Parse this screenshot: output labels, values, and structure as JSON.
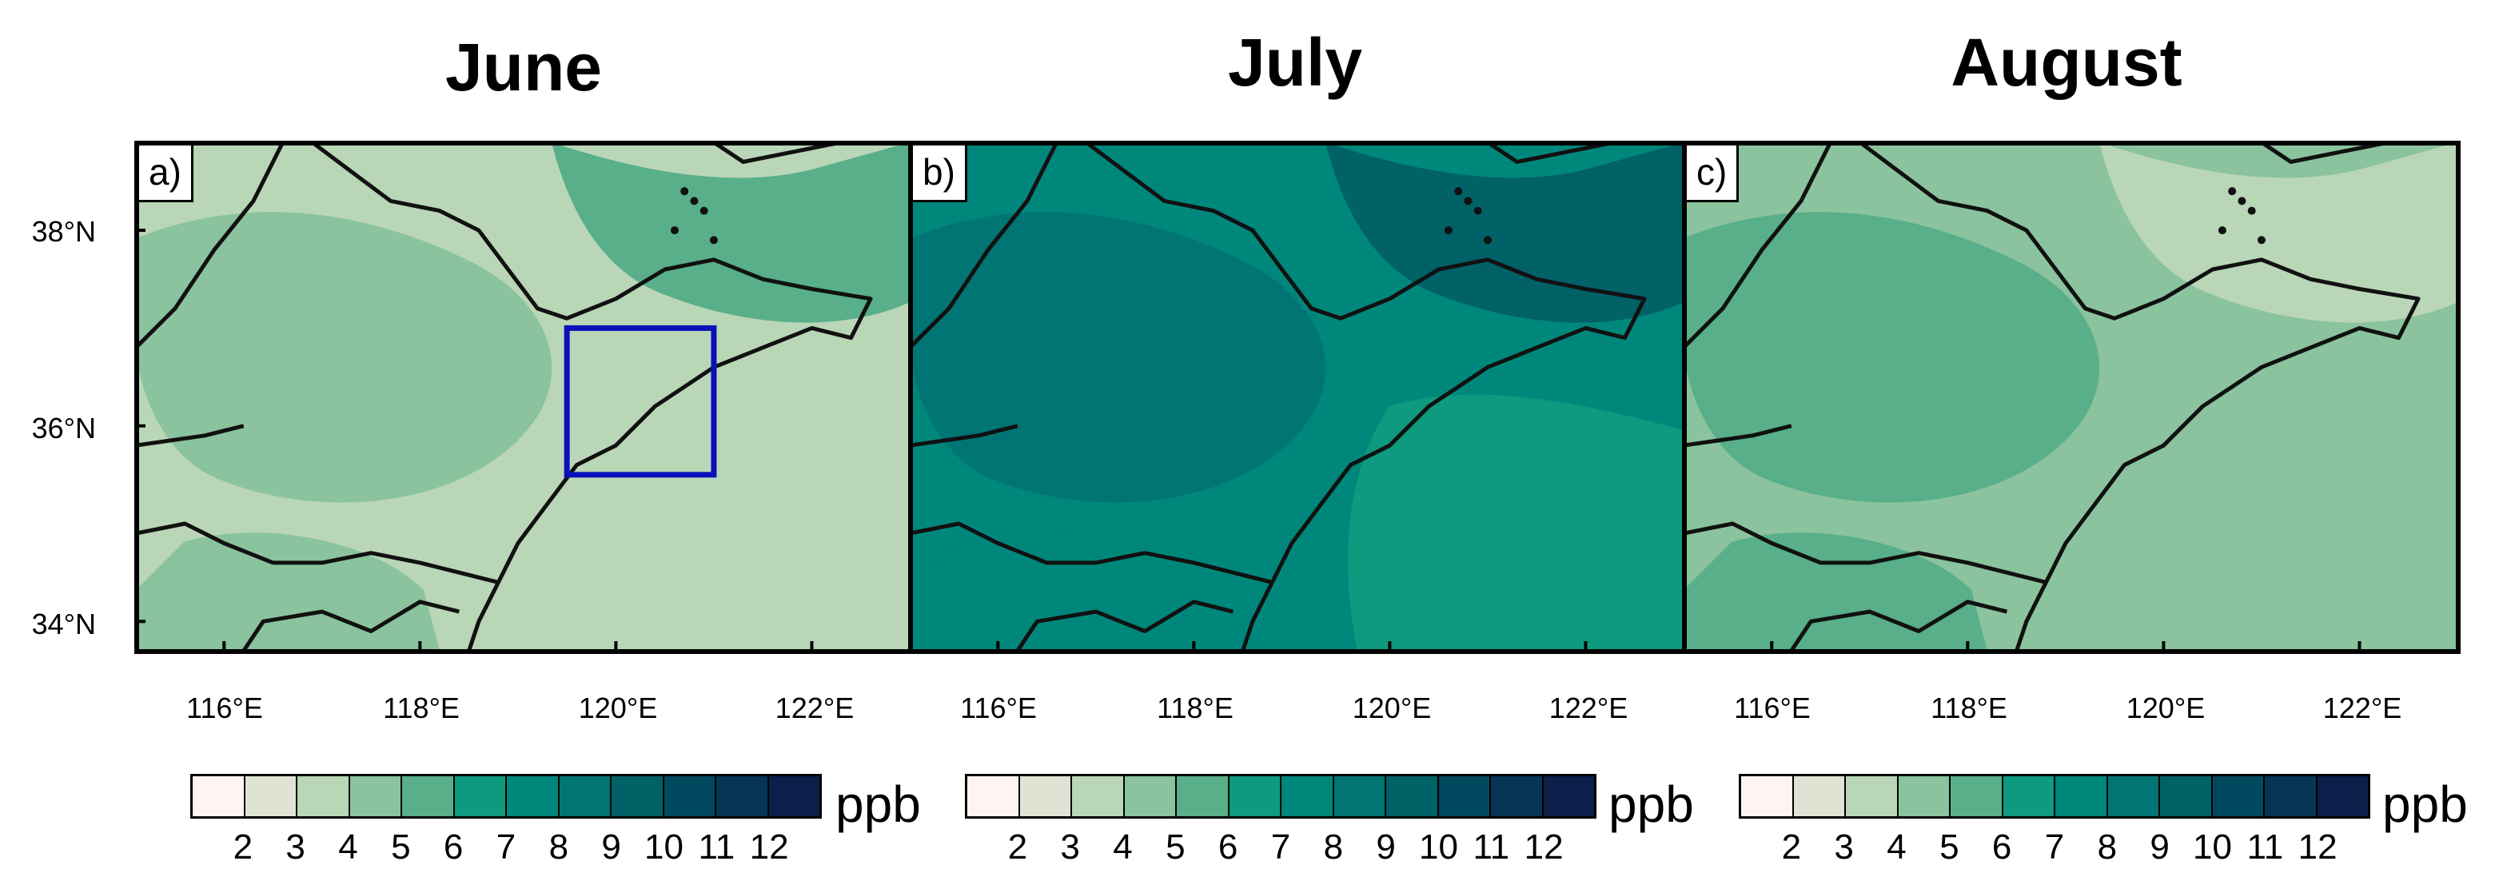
{
  "panels": [
    {
      "title": "June",
      "label": "a)",
      "zones": [
        "#b9d6b6",
        "#8ac39d",
        "#58af8a",
        "#b9d6b6",
        "#8ac39d"
      ]
    },
    {
      "title": "July",
      "label": "b)",
      "zones": [
        "#00877b",
        "#007573",
        "#006167",
        "#0e9a7e",
        "#00877b"
      ]
    },
    {
      "title": "August",
      "label": "c)",
      "zones": [
        "#8ac39d",
        "#58af8a",
        "#b9d6b6",
        "#8ac39d",
        "#58af8a"
      ]
    }
  ],
  "axes": {
    "lat_labels": [
      "38°N",
      "36°N",
      "34°N"
    ],
    "lon_labels": [
      "116°E",
      "118°E",
      "120°E",
      "122°E"
    ]
  },
  "colorbar": {
    "colors": [
      "#fff4f1",
      "#dfe3d4",
      "#b9d6b6",
      "#8ac39d",
      "#58af8a",
      "#0e9a7e",
      "#00877b",
      "#007573",
      "#006167",
      "#01495e",
      "#063555",
      "#0b1f4a"
    ],
    "tick_labels": [
      "2",
      "3",
      "4",
      "5",
      "6",
      "7",
      "8",
      "9",
      "10",
      "11",
      "12"
    ],
    "unit": "ppb"
  },
  "highlight_box": {
    "lon_range": [
      119.5,
      121
    ],
    "lat_range": [
      35.5,
      37
    ],
    "color": "#0a10b8"
  }
}
